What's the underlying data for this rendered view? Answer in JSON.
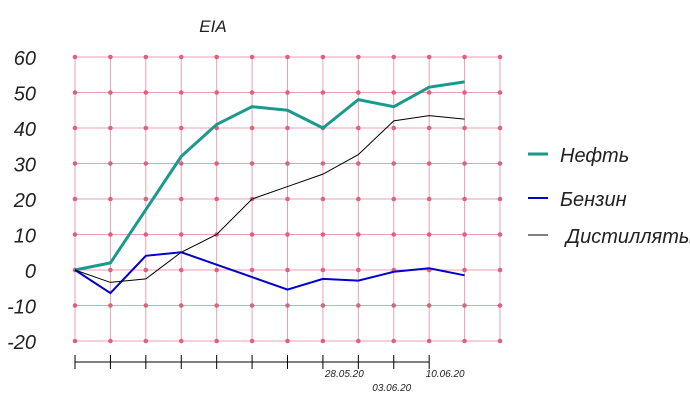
{
  "chart_data": {
    "type": "line",
    "title": "EIA",
    "xlabel": "",
    "ylabel": "",
    "ylim": [
      -20,
      60
    ],
    "yticks": [
      60,
      50,
      40,
      30,
      20,
      10,
      0,
      -10,
      -20
    ],
    "ytick_labels": [
      "60",
      "50",
      "40",
      "30",
      "20",
      "10",
      "0",
      "-10",
      "-20"
    ],
    "x": [
      0,
      1,
      2,
      3,
      4,
      5,
      6,
      7,
      8,
      9,
      10,
      11
    ],
    "xlim": [
      0,
      12
    ],
    "xtick_labels": [
      {
        "x": 8,
        "label": "28.05.20"
      },
      {
        "x": 9,
        "label": "03.06.20"
      },
      {
        "x": 10,
        "label": "10.06.20"
      }
    ],
    "grid": true,
    "legend_position": "right",
    "series": [
      {
        "name": "Нефть",
        "color": "#1a9a8c",
        "width": 3,
        "values": [
          0,
          2,
          17,
          32,
          41,
          46,
          45,
          40,
          48,
          46,
          51.5,
          53
        ]
      },
      {
        "name": "Бензин",
        "color": "#0000cc",
        "width": 2,
        "values": [
          0,
          -6.5,
          4,
          5,
          1.5,
          -2,
          -5.5,
          -2.5,
          -3,
          -0.5,
          0.5,
          -1.5
        ]
      },
      {
        "name": "Дистилляты",
        "color": "#000000",
        "width": 1,
        "values": [
          0,
          -3.5,
          -2.5,
          5,
          10,
          20,
          23.5,
          27,
          32.5,
          42,
          43.5,
          42.5
        ]
      }
    ],
    "colors": {
      "grid": "#e8a0b4",
      "grid_marker": "#e06080",
      "axis": "#000000"
    }
  }
}
